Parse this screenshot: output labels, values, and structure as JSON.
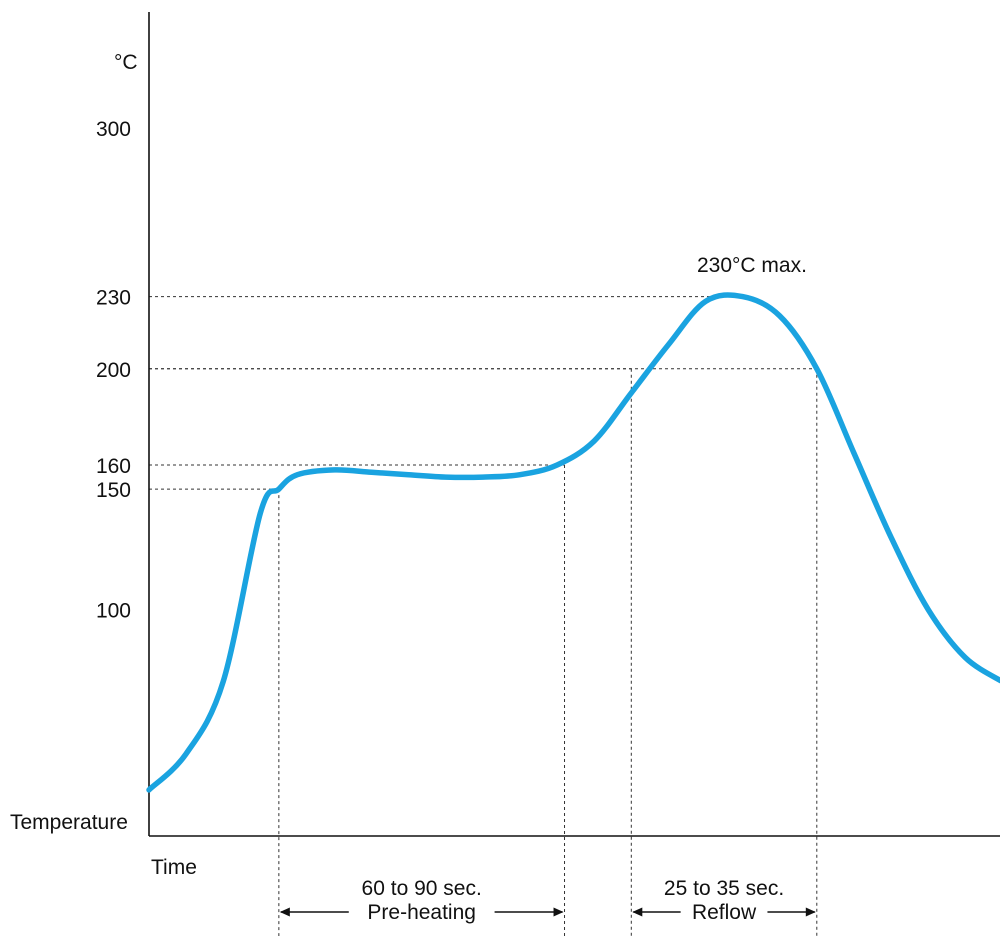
{
  "chart_data": {
    "type": "line",
    "unit_label": "°C",
    "ylabel": "Temperature",
    "xlabel": "Time",
    "ylim": [
      0,
      330
    ],
    "yticks": [
      100,
      150,
      160,
      200,
      230,
      300
    ],
    "series": [
      {
        "color": "#1aa3e0",
        "x": [
          0,
          10,
          20,
          30,
          35,
          40,
          50,
          60,
          70,
          80,
          90,
          100,
          110,
          120,
          130,
          140,
          150,
          160,
          170,
          180,
          190,
          200,
          210,
          220,
          230
        ],
        "y": [
          25,
          40,
          70,
          140,
          150,
          156,
          158,
          157,
          156,
          155,
          155,
          156,
          160,
          170,
          190,
          210,
          228,
          230,
          222,
          200,
          165,
          130,
          100,
          80,
          70
        ]
      }
    ],
    "reference_lines": [
      {
        "temp": 230,
        "time": 160
      },
      {
        "temp": 200,
        "time": 130
      },
      {
        "temp": 200,
        "time": 180
      },
      {
        "temp": 160,
        "time": 112
      },
      {
        "temp": 150,
        "time": 35
      }
    ],
    "peak_annotation": {
      "text": "230°C max.",
      "temp": 230
    },
    "intervals": [
      {
        "start": 35,
        "end": 112,
        "duration_label": "60 to 90 sec.",
        "name": "Pre-heating"
      },
      {
        "start": 130,
        "end": 180,
        "duration_label": "25 to 35 sec.",
        "name": "Reflow"
      }
    ],
    "grid": false,
    "legend": "none"
  }
}
